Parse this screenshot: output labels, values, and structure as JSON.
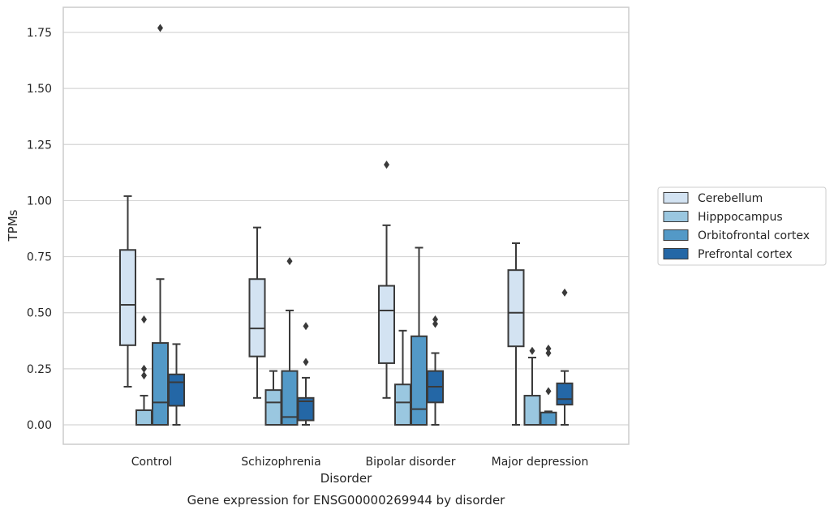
{
  "chart_data": {
    "type": "boxplot",
    "title": "",
    "xlabel": "Disorder",
    "ylabel": "TPMs",
    "caption": "Gene expression for ENSG00000269944 by disorder",
    "ylim": [
      -0.085,
      1.86
    ],
    "yticks": [
      "0.00",
      "0.25",
      "0.50",
      "0.75",
      "1.00",
      "1.25",
      "1.50",
      "1.75"
    ],
    "grid": true,
    "legend_position": "right",
    "categories": [
      "Control",
      "Schizophrenia",
      "Bipolar disorder",
      "Major depression"
    ],
    "series": [
      {
        "name": "Cerebellum",
        "color": "#d3e3f2",
        "boxes": [
          {
            "min": 0.17,
            "q1": 0.355,
            "median": 0.535,
            "q3": 0.78,
            "max": 1.02,
            "outliers": []
          },
          {
            "min": 0.12,
            "q1": 0.305,
            "median": 0.43,
            "q3": 0.65,
            "max": 0.88,
            "outliers": []
          },
          {
            "min": 0.12,
            "q1": 0.275,
            "median": 0.51,
            "q3": 0.62,
            "max": 0.89,
            "outliers": [
              1.16
            ]
          },
          {
            "min": 0.0,
            "q1": 0.35,
            "median": 0.5,
            "q3": 0.69,
            "max": 0.81,
            "outliers": []
          }
        ]
      },
      {
        "name": "Hipppocampus",
        "color": "#9ac7e0",
        "boxes": [
          {
            "min": 0.0,
            "q1": 0.0,
            "median": 0.0,
            "q3": 0.065,
            "max": 0.13,
            "outliers": [
              0.22,
              0.25,
              0.47
            ]
          },
          {
            "min": 0.0,
            "q1": 0.0,
            "median": 0.1,
            "q3": 0.155,
            "max": 0.24,
            "outliers": []
          },
          {
            "min": 0.0,
            "q1": 0.0,
            "median": 0.1,
            "q3": 0.18,
            "max": 0.42,
            "outliers": []
          },
          {
            "min": 0.0,
            "q1": 0.0,
            "median": 0.0,
            "q3": 0.13,
            "max": 0.3,
            "outliers": [
              0.33
            ]
          }
        ]
      },
      {
        "name": "Orbitofrontal cortex",
        "color": "#5399c7",
        "boxes": [
          {
            "min": 0.0,
            "q1": 0.0,
            "median": 0.1,
            "q3": 0.365,
            "max": 0.65,
            "outliers": [
              1.77
            ]
          },
          {
            "min": 0.0,
            "q1": 0.0,
            "median": 0.035,
            "q3": 0.24,
            "max": 0.51,
            "outliers": [
              0.73
            ]
          },
          {
            "min": 0.0,
            "q1": 0.0,
            "median": 0.07,
            "q3": 0.395,
            "max": 0.79,
            "outliers": []
          },
          {
            "min": 0.0,
            "q1": 0.0,
            "median": 0.0,
            "q3": 0.055,
            "max": 0.06,
            "outliers": [
              0.15,
              0.32,
              0.34
            ]
          }
        ]
      },
      {
        "name": "Prefrontal cortex",
        "color": "#2467a6",
        "boxes": [
          {
            "min": 0.0,
            "q1": 0.085,
            "median": 0.19,
            "q3": 0.225,
            "max": 0.36,
            "outliers": []
          },
          {
            "min": 0.0,
            "q1": 0.02,
            "median": 0.105,
            "q3": 0.12,
            "max": 0.21,
            "outliers": [
              0.28,
              0.44
            ]
          },
          {
            "min": 0.0,
            "q1": 0.1,
            "median": 0.17,
            "q3": 0.24,
            "max": 0.32,
            "outliers": [
              0.45,
              0.47
            ]
          },
          {
            "min": 0.0,
            "q1": 0.09,
            "median": 0.115,
            "q3": 0.185,
            "max": 0.24,
            "outliers": [
              0.59
            ]
          }
        ]
      }
    ]
  }
}
